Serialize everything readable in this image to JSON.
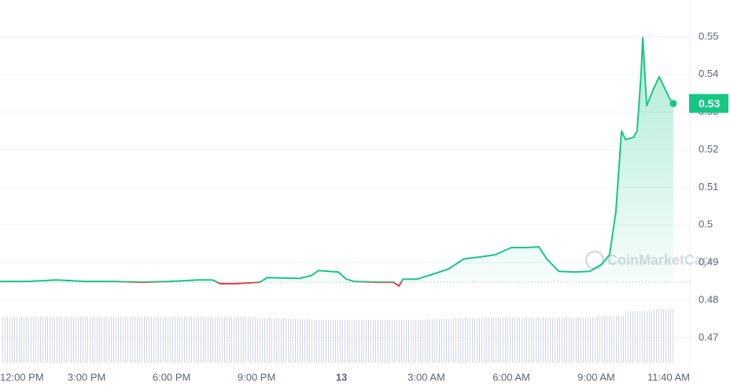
{
  "chart_data": {
    "type": "line",
    "x": [
      -0.06,
      0.94,
      1.94,
      2.94,
      3.94,
      4.94,
      5.94,
      6.94,
      7.44,
      7.72,
      8.28,
      9.11,
      9.39,
      10.5,
      10.92,
      11.19,
      11.89,
      12.17,
      12.44,
      13.28,
      13.83,
      14.03,
      14.17,
      14.67,
      15.22,
      15.78,
      16.33,
      16.89,
      17.44,
      18.0,
      18.56,
      18.97,
      19.25,
      19.67,
      20.22,
      20.78,
      21.19,
      21.47,
      21.69,
      21.89,
      22.03,
      22.31,
      22.44,
      22.58,
      22.64,
      22.78,
      23.0,
      23.22,
      23.42,
      23.61,
      23.72
    ],
    "series": [
      {
        "color": "#16c784",
        "down_color": "#ea3943",
        "values": [
          0.485,
          0.485,
          0.4854,
          0.485,
          0.485,
          0.4848,
          0.485,
          0.4854,
          0.4854,
          0.4844,
          0.4844,
          0.4848,
          0.486,
          0.4858,
          0.4865,
          0.4879,
          0.4875,
          0.4856,
          0.485,
          0.4848,
          0.4848,
          0.4838,
          0.4856,
          0.4856,
          0.4869,
          0.4883,
          0.491,
          0.4915,
          0.4921,
          0.494,
          0.494,
          0.4942,
          0.491,
          0.4877,
          0.4875,
          0.4877,
          0.4896,
          0.4921,
          0.5035,
          0.525,
          0.5227,
          0.5233,
          0.525,
          0.54,
          0.5498,
          0.5317,
          0.5358,
          0.5394,
          0.5363,
          0.5333,
          0.5323
        ]
      }
    ],
    "baseline": 0.4848,
    "xlim": [
      -0.06,
      24.25
    ],
    "ylim": [
      0.4633,
      0.5598
    ],
    "yticks": [
      0.47,
      0.48,
      0.49,
      0.5,
      0.51,
      0.52,
      0.53,
      0.54,
      0.55
    ],
    "xticks": [
      {
        "value": 0,
        "label": "12:00 PM"
      },
      {
        "value": 3,
        "label": "3:00 PM"
      },
      {
        "value": 6,
        "label": "6:00 PM"
      },
      {
        "value": 9,
        "label": "9:00 PM"
      },
      {
        "value": 12,
        "label": "13",
        "bold": true
      },
      {
        "value": 15,
        "label": "3:00 AM"
      },
      {
        "value": 18,
        "label": "6:00 AM"
      },
      {
        "value": 21,
        "label": "9:00 AM"
      },
      {
        "value": 23.67,
        "label": "11:40 AM"
      }
    ],
    "grid": true,
    "price_tag": {
      "value": 0.5323,
      "label": "0.53",
      "color": "#16c784"
    },
    "volume": {
      "color": "#cfd6e4",
      "lim": [
        0,
        100
      ],
      "x": [
        0,
        1,
        2,
        3,
        4,
        5,
        6,
        7,
        8,
        9,
        10,
        11,
        12,
        13,
        14,
        15,
        16,
        17,
        18,
        19,
        20,
        21,
        22,
        23
      ],
      "values": [
        59,
        59,
        59,
        59,
        59,
        59,
        59,
        59,
        59,
        57,
        56,
        55,
        55,
        55,
        55,
        56,
        57,
        58,
        58,
        58,
        58,
        60,
        66,
        69
      ]
    },
    "watermark": "CoinMarketCap"
  }
}
